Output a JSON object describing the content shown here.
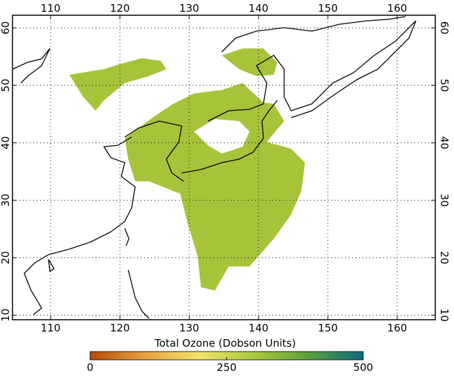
{
  "map": {
    "lonlim": [
      104.5,
      165.5
    ],
    "latlim": [
      9.2,
      62.2
    ],
    "lon_ticks": [
      110,
      120,
      130,
      140,
      150,
      160
    ],
    "lat_ticks": [
      10,
      20,
      30,
      40,
      50,
      60
    ],
    "colorbar": {
      "title": "Total Ozone (Dobson Units)",
      "lim": [
        0,
        500
      ],
      "ticks": [
        0,
        250,
        500
      ],
      "colors": [
        "#b84a0a",
        "#e8a040",
        "#f3e46a",
        "#a9c83c",
        "#5aa03a",
        "#0e6a7e"
      ]
    }
  }
}
